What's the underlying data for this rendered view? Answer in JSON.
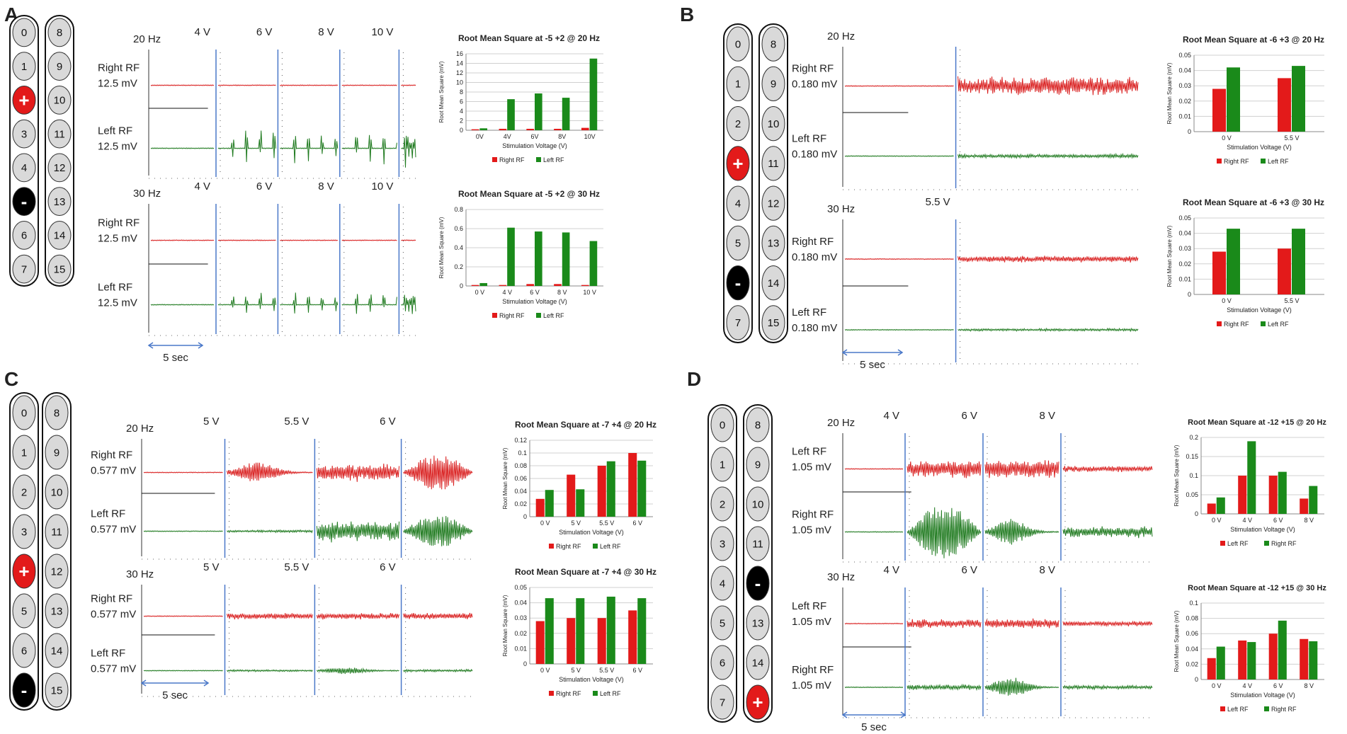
{
  "colors": {
    "red": "#d91f1f",
    "green": "#1f7a1f",
    "blue": "#4a78c9",
    "electrode_fill": "#d9d9d9",
    "plus": "#e31a1a",
    "minus": "#000000"
  },
  "panels": [
    {
      "letter": "A",
      "electrodes": {
        "left": [
          "0",
          "1",
          "+",
          "3",
          "4",
          "-",
          "6",
          "7"
        ],
        "right": [
          "8",
          "9",
          "10",
          "11",
          "12",
          "13",
          "14",
          "15"
        ]
      },
      "rows": [
        {
          "freq": "20 Hz",
          "volts": [
            "4 V",
            "6 V",
            "8 V",
            "10 V"
          ],
          "volt_row_label": false,
          "traces": [
            {
              "name": "Right RF",
              "scale": "12.5 mV",
              "color": "red"
            },
            {
              "name": "Left RF",
              "scale": "12.5 mV",
              "color": "green"
            }
          ],
          "chart": {
            "title": "Root Mean Square at -5 +2 @ 20 Hz"
          }
        },
        {
          "freq": "30 Hz",
          "volts": [
            "4 V",
            "6 V",
            "8 V",
            "10 V"
          ],
          "volt_row_label": true,
          "traces": [
            {
              "name": "Right RF",
              "scale": "12.5 mV",
              "color": "red"
            },
            {
              "name": "Left RF",
              "scale": "12.5 mV",
              "color": "green"
            }
          ],
          "chart": {
            "title": "Root Mean Square at -5 +2 @ 30 Hz"
          }
        }
      ],
      "scalebar": "5 sec"
    },
    {
      "letter": "B",
      "electrodes": {
        "left": [
          "0",
          "1",
          "2",
          "+",
          "4",
          "5",
          "-",
          "7"
        ],
        "right": [
          "8",
          "9",
          "10",
          "11",
          "12",
          "13",
          "14",
          "15"
        ]
      },
      "rows": [
        {
          "freq": "20 Hz",
          "volts": [],
          "volt_row_label": false,
          "traces": [
            {
              "name": "Right RF",
              "scale": "0.180 mV",
              "color": "red"
            },
            {
              "name": "Left RF",
              "scale": "0.180 mV",
              "color": "green"
            }
          ],
          "chart": {
            "title": "Root Mean Square at -6 +3 @ 20 Hz"
          }
        },
        {
          "freq": "30 Hz",
          "volts": [
            "5.5 V"
          ],
          "volt_row_label": true,
          "traces": [
            {
              "name": "Right RF",
              "scale": "0.180 mV",
              "color": "red"
            },
            {
              "name": "Left RF",
              "scale": "0.180 mV",
              "color": "green"
            }
          ],
          "chart": {
            "title": "Root Mean Square at -6 +3 @ 30 Hz"
          }
        }
      ],
      "scalebar": "5 sec"
    },
    {
      "letter": "C",
      "electrodes": {
        "left": [
          "0",
          "1",
          "2",
          "3",
          "+",
          "5",
          "6",
          "-"
        ],
        "right": [
          "8",
          "9",
          "10",
          "11",
          "12",
          "13",
          "14",
          "15"
        ]
      },
      "rows": [
        {
          "freq": "20 Hz",
          "volts": [
            "5 V",
            "5.5 V",
            "6 V"
          ],
          "volt_row_label": true,
          "traces": [
            {
              "name": "Right RF",
              "scale": "0.577 mV",
              "color": "red"
            },
            {
              "name": "Left RF",
              "scale": "0.577 mV",
              "color": "green"
            }
          ],
          "chart": {
            "title": "Root Mean Square at -7 +4 @ 20 Hz"
          }
        },
        {
          "freq": "30 Hz",
          "volts": [
            "5 V",
            "5.5 V",
            "6 V"
          ],
          "volt_row_label": true,
          "traces": [
            {
              "name": "Right RF",
              "scale": "0.577 mV",
              "color": "red"
            },
            {
              "name": "Left RF",
              "scale": "0.577 mV",
              "color": "green"
            }
          ],
          "chart": {
            "title": "Root Mean Square at -7 +4 @ 30 Hz"
          }
        }
      ],
      "scalebar": "5 sec"
    },
    {
      "letter": "D",
      "electrodes": {
        "left": [
          "0",
          "1",
          "2",
          "3",
          "4",
          "5",
          "6",
          "7"
        ],
        "right": [
          "8",
          "9",
          "10",
          "11",
          "-",
          "13",
          "14",
          "+"
        ]
      },
      "rows": [
        {
          "freq": "20 Hz",
          "volts": [
            "4 V",
            "6 V",
            "8 V"
          ],
          "volt_row_label": true,
          "traces": [
            {
              "name": "Left RF",
              "scale": "1.05 mV",
              "color": "red"
            },
            {
              "name": "Right RF",
              "scale": "1.05 mV",
              "color": "green"
            }
          ],
          "chart": {
            "title": "Root Mean Square at -12 +15 @ 20 Hz"
          }
        },
        {
          "freq": "30 Hz",
          "volts": [
            "4 V",
            "6 V",
            "8 V"
          ],
          "volt_row_label": true,
          "traces": [
            {
              "name": "Left RF",
              "scale": "1.05 mV",
              "color": "red"
            },
            {
              "name": "Right RF",
              "scale": "1.05 mV",
              "color": "green"
            }
          ],
          "chart": {
            "title": "Root Mean Square at -12 +15 @ 30 Hz"
          }
        }
      ],
      "scalebar": "5 sec"
    }
  ],
  "chart_data": [
    {
      "type": "bar",
      "title": "Root Mean Square at -5 +2 @ 20 Hz",
      "xlabel": "Stimulation Voltage (V)",
      "ylabel": "Root Mean Square (mV)",
      "categories": [
        "0V",
        "4V",
        "6V",
        "8V",
        "10V"
      ],
      "ylim": [
        0,
        16
      ],
      "yticks": [
        0,
        2,
        4,
        6,
        8,
        10,
        12,
        14,
        16
      ],
      "series": [
        {
          "name": "Right RF",
          "color": "#e31a1a",
          "values": [
            0.2,
            0.3,
            0.3,
            0.3,
            0.5
          ]
        },
        {
          "name": "Left RF",
          "color": "#1a8a1a",
          "values": [
            0.4,
            6.5,
            7.7,
            6.8,
            15
          ]
        }
      ]
    },
    {
      "type": "bar",
      "title": "Root Mean Square at -5 +2 @ 30 Hz",
      "xlabel": "Stimulation Voltage (V)",
      "ylabel": "Root Mean Square (mV)",
      "categories": [
        "0 V",
        "4 V",
        "6 V",
        "8 V",
        "10 V"
      ],
      "ylim": [
        0,
        0.8
      ],
      "yticks": [
        0,
        0.2,
        0.4,
        0.6,
        0.8
      ],
      "series": [
        {
          "name": "Right RF",
          "color": "#e31a1a",
          "values": [
            0.01,
            0.01,
            0.02,
            0.02,
            0.01
          ]
        },
        {
          "name": "Left RF",
          "color": "#1a8a1a",
          "values": [
            0.03,
            0.61,
            0.57,
            0.56,
            0.47
          ]
        }
      ]
    },
    {
      "type": "bar",
      "title": "Root Mean Square at -6 +3 @ 20 Hz",
      "xlabel": "Stimulation Voltage (V)",
      "ylabel": "Root Mean Square (mV)",
      "categories": [
        "0 V",
        "5.5 V"
      ],
      "ylim": [
        0,
        0.05
      ],
      "yticks": [
        0,
        0.01,
        0.02,
        0.03,
        0.04,
        0.05
      ],
      "series": [
        {
          "name": "Right RF",
          "color": "#e31a1a",
          "values": [
            0.028,
            0.035
          ]
        },
        {
          "name": "Left RF",
          "color": "#1a8a1a",
          "values": [
            0.042,
            0.043
          ]
        }
      ]
    },
    {
      "type": "bar",
      "title": "Root Mean Square at -6 +3 @ 30 Hz",
      "xlabel": "Stimulation Voltage (V)",
      "ylabel": "Root Mean Square (mV)",
      "categories": [
        "0 V",
        "5.5 V"
      ],
      "ylim": [
        0,
        0.05
      ],
      "yticks": [
        0,
        0.01,
        0.02,
        0.03,
        0.04,
        0.05
      ],
      "series": [
        {
          "name": "Right RF",
          "color": "#e31a1a",
          "values": [
            0.028,
            0.03
          ]
        },
        {
          "name": "Left RF",
          "color": "#1a8a1a",
          "values": [
            0.043,
            0.043
          ]
        }
      ]
    },
    {
      "type": "bar",
      "title": "Root Mean Square at -7 +4 @ 20 Hz",
      "xlabel": "Stimulation Voltage (V)",
      "ylabel": "Root Mean Square (mV)",
      "categories": [
        "0 V",
        "5 V",
        "5.5 V",
        "6 V"
      ],
      "ylim": [
        0,
        0.12
      ],
      "yticks": [
        0,
        0.02,
        0.04,
        0.06,
        0.08,
        0.1,
        0.12
      ],
      "series": [
        {
          "name": "Right RF",
          "color": "#e31a1a",
          "values": [
            0.028,
            0.066,
            0.08,
            0.1
          ]
        },
        {
          "name": "Left RF",
          "color": "#1a8a1a",
          "values": [
            0.042,
            0.043,
            0.087,
            0.088
          ]
        }
      ]
    },
    {
      "type": "bar",
      "title": "Root Mean Square at -7 +4 @ 30 Hz",
      "xlabel": "Stimulation Voltage (V)",
      "ylabel": "Root Mean Square (mV)",
      "categories": [
        "0 V",
        "5 V",
        "5.5 V",
        "6 V"
      ],
      "ylim": [
        0,
        0.05
      ],
      "yticks": [
        0,
        0.01,
        0.02,
        0.03,
        0.04,
        0.05
      ],
      "series": [
        {
          "name": "Right RF",
          "color": "#e31a1a",
          "values": [
            0.028,
            0.03,
            0.03,
            0.035
          ]
        },
        {
          "name": "Left RF",
          "color": "#1a8a1a",
          "values": [
            0.043,
            0.043,
            0.044,
            0.043
          ]
        }
      ]
    },
    {
      "type": "bar",
      "title": "Root Mean Square at -12 +15 @ 20 Hz",
      "xlabel": "Stimulation Voltage (V)",
      "ylabel": "Root Mean Square (mV)",
      "categories": [
        "0 V",
        "4 V",
        "6 V",
        "8 V"
      ],
      "ylim": [
        0,
        0.2
      ],
      "yticks": [
        0,
        0.05,
        0.1,
        0.15,
        0.2
      ],
      "series": [
        {
          "name": "Left RF",
          "color": "#e31a1a",
          "values": [
            0.027,
            0.1,
            0.1,
            0.04
          ]
        },
        {
          "name": "Right RF",
          "color": "#1a8a1a",
          "values": [
            0.043,
            0.19,
            0.11,
            0.073
          ]
        }
      ]
    },
    {
      "type": "bar",
      "title": "Root Mean Square at -12 +15 @ 30 Hz",
      "xlabel": "Stimulation Voltage (V)",
      "ylabel": "Root Mean Square (mV)",
      "categories": [
        "0 V",
        "4 V",
        "6 V",
        "8 V"
      ],
      "ylim": [
        0,
        0.1
      ],
      "yticks": [
        0,
        0.02,
        0.04,
        0.06,
        0.08,
        0.1
      ],
      "series": [
        {
          "name": "Left RF",
          "color": "#e31a1a",
          "values": [
            0.028,
            0.051,
            0.06,
            0.053
          ]
        },
        {
          "name": "Right RF",
          "color": "#1a8a1a",
          "values": [
            0.043,
            0.049,
            0.077,
            0.05
          ]
        }
      ]
    }
  ]
}
